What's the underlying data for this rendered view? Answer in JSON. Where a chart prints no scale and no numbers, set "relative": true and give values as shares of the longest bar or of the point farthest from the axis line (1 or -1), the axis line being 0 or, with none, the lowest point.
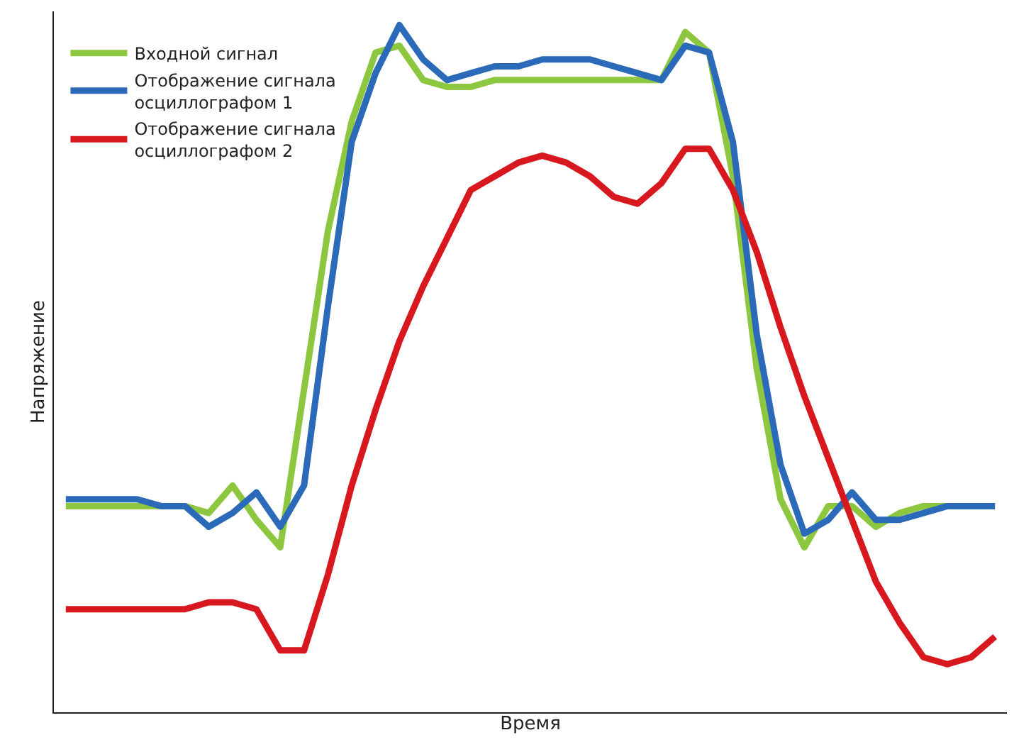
{
  "chart_data": {
    "type": "line",
    "relative": true,
    "xlabel": "Время",
    "ylabel": "Напряжение",
    "grid": false,
    "legend": "top left",
    "marker": "none",
    "line_style": "solid",
    "categories": [
      null,
      null,
      null,
      null,
      null,
      null,
      null,
      null,
      null,
      null,
      null,
      null,
      null,
      null,
      null,
      null,
      null,
      null,
      null,
      null,
      null,
      null,
      null,
      null,
      null,
      null,
      null,
      null,
      null,
      null,
      null,
      null,
      null,
      null,
      null,
      null,
      null,
      null,
      null,
      null
    ],
    "series": [
      {
        "name": "Входной сигнал",
        "color": "#8dc63f",
        "values": [
          0.3,
          0.3,
          0.3,
          0.3,
          0.3,
          0.3,
          0.29,
          0.33,
          0.28,
          0.24,
          0.47,
          0.7,
          0.86,
          0.96,
          0.97,
          0.92,
          0.91,
          0.91,
          0.92,
          0.92,
          0.92,
          0.92,
          0.92,
          0.92,
          0.92,
          0.92,
          0.99,
          0.96,
          0.78,
          0.5,
          0.31,
          0.24,
          0.3,
          0.3,
          0.27,
          0.29,
          0.3,
          0.3,
          null,
          null
        ]
      },
      {
        "name": "Отображение сигнала осциллографом 1",
        "color": "#2a6ab8",
        "values": [
          0.31,
          0.31,
          0.31,
          0.31,
          0.3,
          0.3,
          0.27,
          0.29,
          0.32,
          0.27,
          0.33,
          0.59,
          0.83,
          0.93,
          1.0,
          0.95,
          0.92,
          0.93,
          0.94,
          0.94,
          0.95,
          0.95,
          0.95,
          0.94,
          0.93,
          0.92,
          0.97,
          0.96,
          0.83,
          0.55,
          0.36,
          0.26,
          0.28,
          0.32,
          0.28,
          0.28,
          0.29,
          0.3,
          0.3,
          0.3
        ]
      },
      {
        "name": "Отображение сигнала осциллографом 2",
        "color": "#d7191f",
        "values": [
          0.15,
          0.15,
          0.15,
          0.15,
          0.15,
          0.15,
          0.16,
          0.16,
          0.15,
          0.09,
          0.09,
          0.2,
          0.33,
          0.44,
          0.54,
          0.62,
          0.69,
          0.76,
          0.78,
          0.8,
          0.81,
          0.8,
          0.78,
          0.75,
          0.74,
          0.77,
          0.82,
          0.82,
          0.76,
          0.67,
          0.56,
          0.46,
          0.37,
          0.28,
          0.19,
          0.13,
          0.08,
          0.07,
          0.08,
          0.11
        ]
      }
    ]
  }
}
